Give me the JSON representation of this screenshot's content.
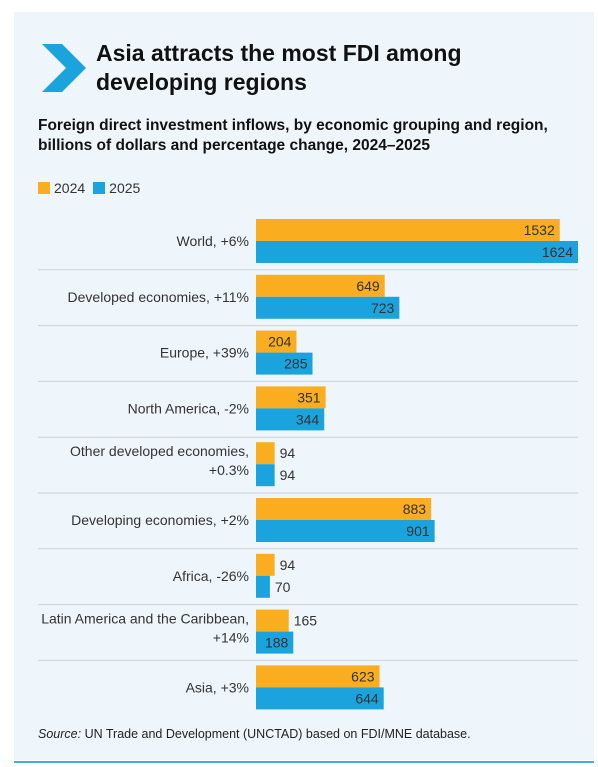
{
  "title": "Asia attracts the most FDI among developing regions",
  "subtitle": "Foreign direct investment inflows, by economic grouping and region, billions of dollars and percentage change, 2024–2025",
  "source_label": "Source:",
  "source_text": " UN Trade and Development (UNCTAD) based on FDI/MNE database.",
  "colors": {
    "2024": "#f9ad1f",
    "2025": "#1ba3dd",
    "accent": "#1ba3dd",
    "panel": "#eef6fc"
  },
  "chart_data": {
    "type": "bar",
    "orientation": "horizontal",
    "categories": [
      "World, +6%",
      "Developed economies, +11%",
      "Europe, +39%",
      "North America, -2%",
      "Other developed economies, +0.3%",
      "Developing economies, +2%",
      "Africa, -26%",
      "Latin America and the Caribbean, +14%",
      "Asia, +3%"
    ],
    "category_lines": [
      [
        "World, +6%"
      ],
      [
        "Developed economies, +11%"
      ],
      [
        "Europe, +39%"
      ],
      [
        "North America, -2%"
      ],
      [
        "Other developed economies,",
        "+0.3%"
      ],
      [
        "Developing economies, +2%"
      ],
      [
        "Africa, -26%"
      ],
      [
        "Latin America and the Caribbean,",
        "+14%"
      ],
      [
        "Asia, +3%"
      ]
    ],
    "series": [
      {
        "name": "2024",
        "values": [
          1532,
          649,
          204,
          351,
          94,
          883,
          94,
          165,
          623
        ]
      },
      {
        "name": "2025",
        "values": [
          1624,
          723,
          285,
          344,
          94,
          901,
          70,
          188,
          644
        ]
      }
    ],
    "xlim": [
      0,
      1624
    ],
    "legend_position": "top-left",
    "grid": false
  }
}
